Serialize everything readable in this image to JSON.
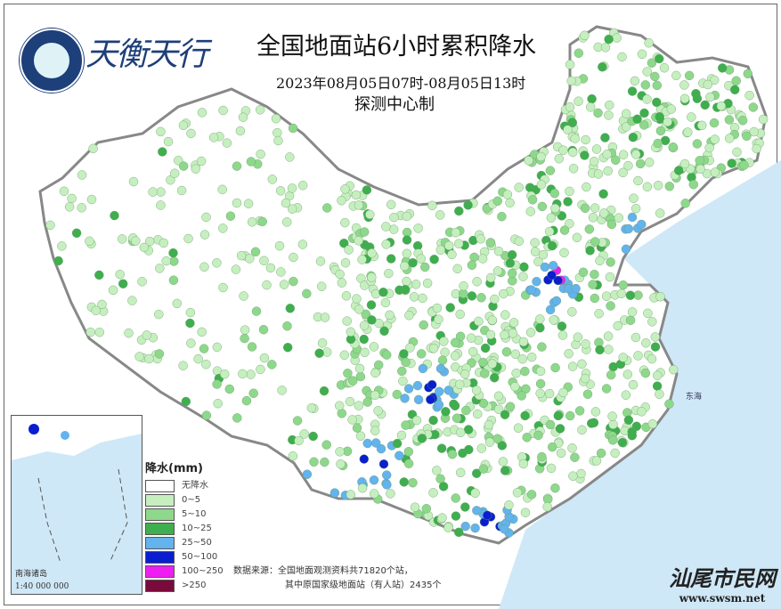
{
  "header": {
    "logo_text": "天衡天行",
    "title": "全国地面站6小时累积降水",
    "subtitle": "2023年08月05日07时-08月05日13时",
    "maker": "探测中心制"
  },
  "legend": {
    "title": "降水(mm)",
    "items": [
      {
        "label": "无降水",
        "color": "#ffffff"
      },
      {
        "label": "0~5",
        "color": "#c6efbf"
      },
      {
        "label": "5~10",
        "color": "#8ed88c"
      },
      {
        "label": "10~25",
        "color": "#3fae4e"
      },
      {
        "label": "25~50",
        "color": "#62b3ee"
      },
      {
        "label": "50~100",
        "color": "#0a1ecf"
      },
      {
        "label": "100~250",
        "color": "#ee1ef0"
      },
      {
        "label": ">250",
        "color": "#7a0a3c"
      }
    ]
  },
  "source": {
    "line1": "数据来源：全国地面观测资料共71820个站，",
    "line2": "其中原国家级地面站（有人站）2435个"
  },
  "inset": {
    "label": "南海诸岛",
    "scale": "1:40 000 000"
  },
  "sea_labels": [
    "东海"
  ],
  "watermark": {
    "title": "汕尾市民网",
    "url": "www.swsm.net"
  },
  "colors": {
    "sea": "#cfe8f7",
    "border": "#888888"
  }
}
